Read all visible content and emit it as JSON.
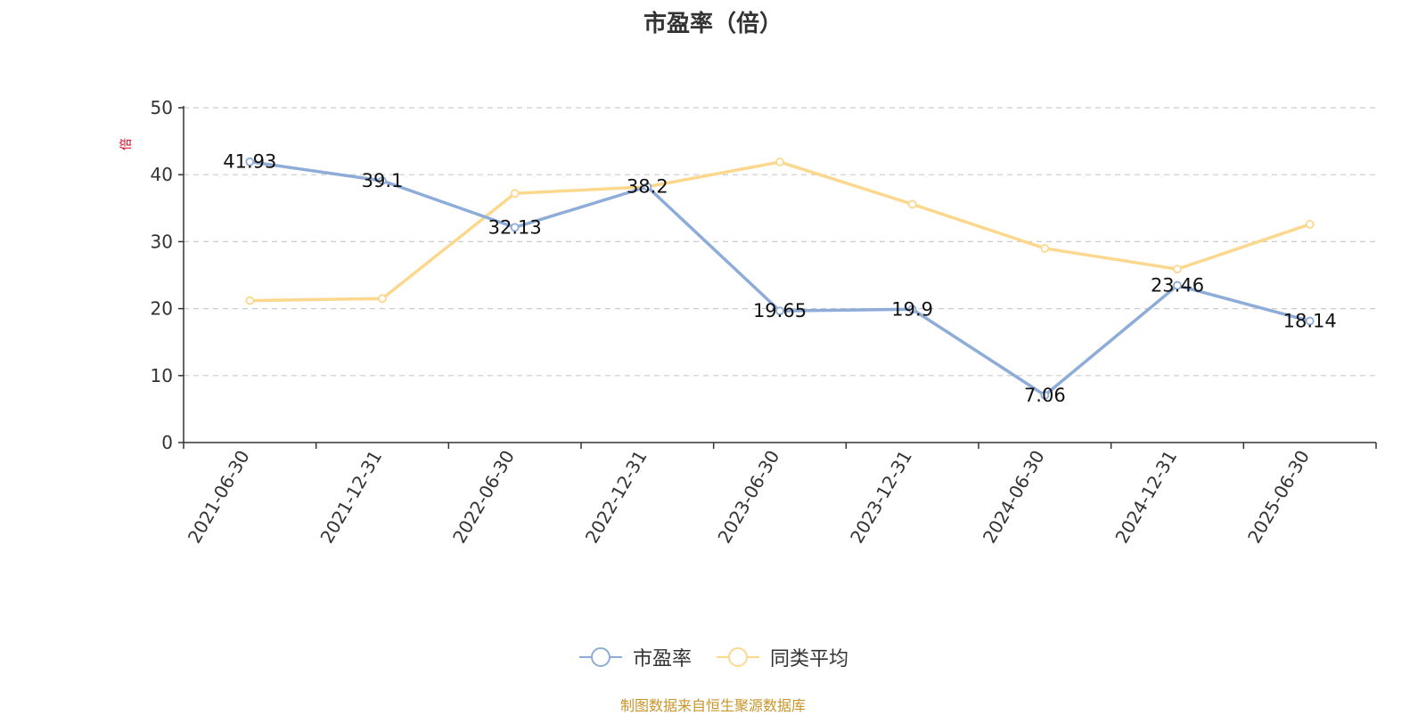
{
  "title": "市盈率（倍）",
  "source_note": "制图数据来自恒生聚源数据库",
  "colors": {
    "pe": "#8eacd8",
    "avg": "#fbd88e",
    "axis": "#333333",
    "grid": "#cccccc",
    "unit": "#e0001b"
  },
  "chart_data": {
    "type": "line",
    "title": "市盈率（倍）",
    "ylabel": "倍",
    "ylim": [
      0,
      50
    ],
    "yticks": [
      0,
      10,
      20,
      30,
      40,
      50
    ],
    "grid": true,
    "legend_position": "bottom",
    "categories": [
      "2021-06-30",
      "2021-12-31",
      "2022-06-30",
      "2022-12-31",
      "2023-06-30",
      "2023-12-31",
      "2024-06-30",
      "2024-12-31",
      "2025-06-30"
    ],
    "series": [
      {
        "name": "市盈率",
        "values": [
          41.93,
          39.1,
          32.13,
          38.2,
          19.65,
          19.9,
          7.06,
          23.46,
          18.14
        ],
        "labels": [
          "41.93",
          "39.1",
          "32.13",
          "38.2",
          "19.65",
          "19.9",
          "7.06",
          "23.46",
          "18.14"
        ],
        "show_labels": true
      },
      {
        "name": "同类平均",
        "values": [
          21.2,
          21.5,
          37.2,
          38.2,
          41.9,
          35.6,
          29.0,
          25.9,
          32.6
        ],
        "show_labels": false
      }
    ]
  }
}
